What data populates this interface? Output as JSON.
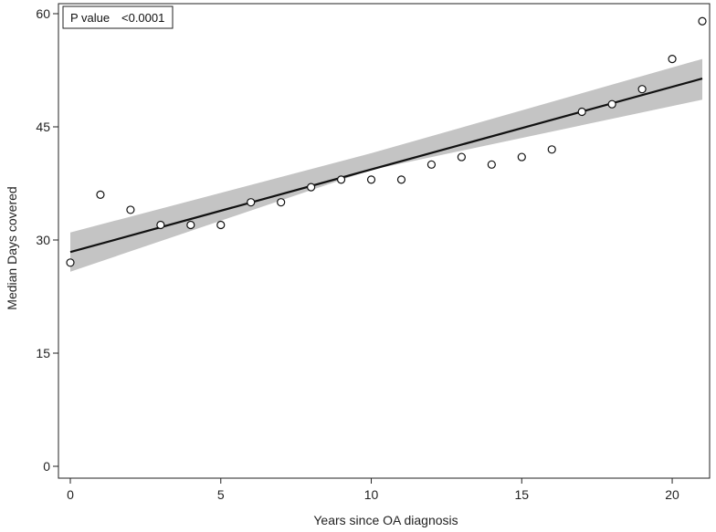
{
  "chart_data": {
    "type": "scatter",
    "xlabel": "Years since OA diagnosis",
    "ylabel": "Median Days covered",
    "xlim": [
      0,
      21
    ],
    "ylim": [
      0,
      60
    ],
    "xticks": [
      "0",
      "5",
      "10",
      "15",
      "20"
    ],
    "yticks": [
      "0",
      "15",
      "30",
      "45",
      "60"
    ],
    "grid": false,
    "annotation": {
      "label": "P value",
      "value": "<0.0001"
    },
    "points": {
      "x": [
        0,
        1,
        2,
        3,
        4,
        5,
        6,
        7,
        8,
        9,
        10,
        11,
        12,
        13,
        14,
        15,
        16,
        17,
        18,
        19,
        20,
        21
      ],
      "y": [
        27,
        36,
        34,
        32,
        32,
        32,
        35,
        35,
        37,
        38,
        38,
        38,
        40,
        41,
        40,
        41,
        42,
        47,
        48,
        50,
        54,
        59
      ]
    },
    "fit": {
      "x": [
        0,
        21
      ],
      "y": [
        28.4,
        51.4
      ]
    },
    "ci_band": {
      "x": [
        0,
        10,
        21
      ],
      "lower": [
        25.8,
        39.3,
        48.6
      ],
      "upper": [
        31.0,
        41.5,
        54.0
      ]
    },
    "colors": {
      "band": "#c4c4c4",
      "line": "#111111",
      "marker": "#111111"
    }
  }
}
